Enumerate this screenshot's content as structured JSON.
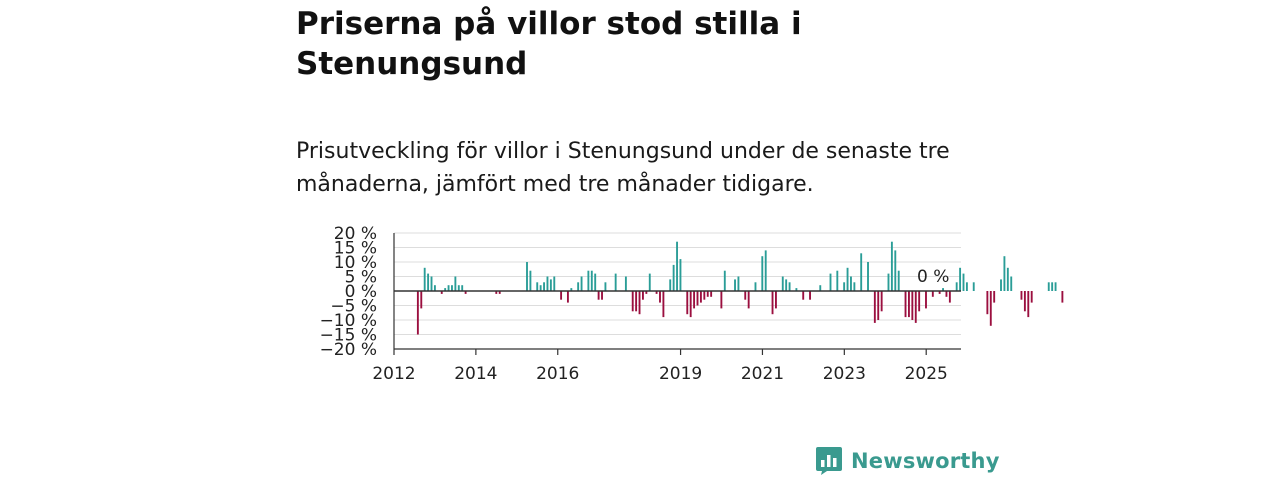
{
  "title": "Priserna på villor stod stilla i Stenungsund",
  "subtitle": "Prisutveckling för villor i Stenungsund under de senaste tre månaderna, jämfört med tre månader tidigare.",
  "brand": {
    "name": "Newsworthy",
    "logo_icon": "bar-chart-bubble-icon"
  },
  "colors": {
    "positive": "#2a9d97",
    "negative": "#9b0f3f",
    "axis": "#333333",
    "grid": "#dddddd",
    "brand": "#3a9a8f"
  },
  "chart_data": {
    "type": "bar",
    "xlabel": "",
    "ylabel": "",
    "ylim": [
      -20,
      20
    ],
    "yticks": [
      20,
      15,
      10,
      5,
      0,
      -5,
      -10,
      -15,
      -20
    ],
    "ytick_labels": [
      "20 %",
      "15 %",
      "10 %",
      "5 %",
      "0 %",
      "−5 %",
      "−10 %",
      "−15 %",
      "−20 %"
    ],
    "xlim": [
      2012.0,
      2025.85
    ],
    "xticks": [
      2012,
      2014,
      2016,
      2019,
      2021,
      2023,
      2025
    ],
    "xtick_labels": [
      "2012",
      "2014",
      "2016",
      "2019",
      "2021",
      "2023",
      "2025"
    ],
    "grid": true,
    "annotation": {
      "x": 2025.0,
      "y": 0,
      "text": "0 %"
    },
    "x_start": 2012.583,
    "x_step": 0.0833,
    "values": [
      -15,
      -6,
      8,
      6,
      5,
      2,
      0,
      -1,
      1,
      2,
      2,
      5,
      2,
      2,
      -1,
      0,
      0,
      0,
      0,
      0,
      0,
      0,
      0,
      -1,
      -1,
      0,
      0,
      0,
      0,
      0,
      0,
      0,
      10,
      7,
      0,
      3,
      2,
      3,
      5,
      4,
      5,
      0,
      -3,
      0,
      -4,
      1,
      0,
      3,
      5,
      0,
      7,
      7,
      6,
      -3,
      -3,
      3,
      0,
      0,
      6,
      0,
      0,
      5,
      0,
      -7,
      -7,
      -8,
      -3,
      -1,
      6,
      0,
      -1,
      -4,
      -9,
      0,
      4,
      9,
      17,
      11,
      0,
      -8,
      -9,
      -6,
      -5,
      -4,
      -3,
      -2,
      -2,
      0,
      0,
      -6,
      7,
      0,
      0,
      4,
      5,
      0,
      -3,
      -6,
      0,
      3,
      0,
      12,
      14,
      0,
      -8,
      -6,
      0,
      5,
      4,
      3,
      0,
      1,
      0,
      -3,
      0,
      -3,
      0,
      0,
      2,
      0,
      0,
      6,
      0,
      7,
      0,
      3,
      8,
      5,
      3,
      0,
      13,
      0,
      10,
      0,
      -11,
      -10,
      -7,
      0,
      6,
      17,
      14,
      7,
      0,
      -9,
      -9,
      -10,
      -11,
      -7,
      0,
      -6,
      0,
      -2,
      0,
      -1,
      1,
      -2,
      -4,
      0,
      3,
      8,
      6,
      3,
      0,
      3,
      0,
      0,
      0,
      -8,
      -12,
      -4,
      0,
      4,
      12,
      8,
      5,
      0,
      0,
      -3,
      -7,
      -9,
      -4,
      0,
      0,
      0,
      0,
      3,
      3,
      3,
      0,
      -4,
      0
    ]
  }
}
